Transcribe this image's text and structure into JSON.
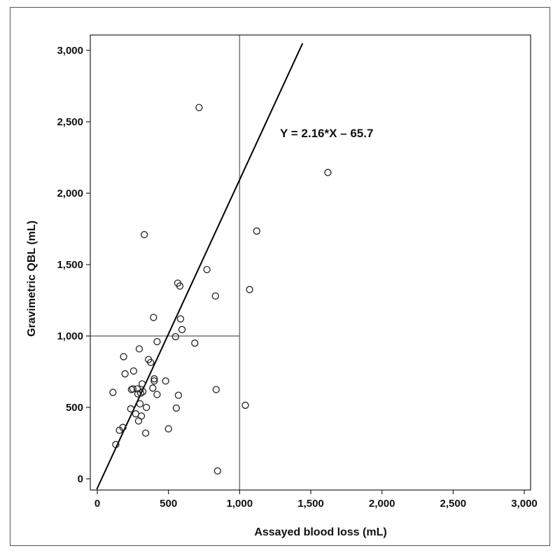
{
  "chart_data": {
    "type": "scatter",
    "title": "",
    "xlabel": "Assayed blood loss (mL)",
    "ylabel": "Gravimetric QBL (mL)",
    "xlim": [
      0,
      3000
    ],
    "ylim": [
      0,
      3000
    ],
    "x_ticks": [
      {
        "value": 0,
        "label": "0"
      },
      {
        "value": 500,
        "label": "500"
      },
      {
        "value": 1000,
        "label": "1,000"
      },
      {
        "value": 1500,
        "label": "1,500"
      },
      {
        "value": 2000,
        "label": "2,000"
      },
      {
        "value": 2500,
        "label": "2,500"
      },
      {
        "value": 3000,
        "label": "3,000"
      }
    ],
    "y_ticks": [
      {
        "value": 0,
        "label": "0"
      },
      {
        "value": 500,
        "label": "500"
      },
      {
        "value": 1000,
        "label": "1,000"
      },
      {
        "value": 1500,
        "label": "1,500"
      },
      {
        "value": 2000,
        "label": "2,000"
      },
      {
        "value": 2500,
        "label": "2,500"
      },
      {
        "value": 3000,
        "label": "3,000"
      }
    ],
    "reference_lines": {
      "x": 1000,
      "y": 1000
    },
    "regression": {
      "slope": 2.16,
      "intercept": -65.7,
      "label": "Y = 2.16*X – 65.7"
    },
    "points": [
      {
        "x": 110,
        "y": 605
      },
      {
        "x": 130,
        "y": 240
      },
      {
        "x": 155,
        "y": 340
      },
      {
        "x": 180,
        "y": 360
      },
      {
        "x": 185,
        "y": 855
      },
      {
        "x": 195,
        "y": 735
      },
      {
        "x": 235,
        "y": 490
      },
      {
        "x": 240,
        "y": 625
      },
      {
        "x": 250,
        "y": 630
      },
      {
        "x": 255,
        "y": 755
      },
      {
        "x": 270,
        "y": 455
      },
      {
        "x": 280,
        "y": 630
      },
      {
        "x": 285,
        "y": 595
      },
      {
        "x": 290,
        "y": 405
      },
      {
        "x": 295,
        "y": 910
      },
      {
        "x": 300,
        "y": 525
      },
      {
        "x": 305,
        "y": 600
      },
      {
        "x": 310,
        "y": 440
      },
      {
        "x": 315,
        "y": 665
      },
      {
        "x": 320,
        "y": 610
      },
      {
        "x": 330,
        "y": 1710
      },
      {
        "x": 340,
        "y": 320
      },
      {
        "x": 345,
        "y": 500
      },
      {
        "x": 360,
        "y": 835
      },
      {
        "x": 375,
        "y": 815
      },
      {
        "x": 390,
        "y": 635
      },
      {
        "x": 395,
        "y": 1130
      },
      {
        "x": 400,
        "y": 700
      },
      {
        "x": 400,
        "y": 685
      },
      {
        "x": 420,
        "y": 590
      },
      {
        "x": 420,
        "y": 960
      },
      {
        "x": 480,
        "y": 685
      },
      {
        "x": 500,
        "y": 350
      },
      {
        "x": 550,
        "y": 995
      },
      {
        "x": 555,
        "y": 495
      },
      {
        "x": 565,
        "y": 1370
      },
      {
        "x": 570,
        "y": 585
      },
      {
        "x": 580,
        "y": 1350
      },
      {
        "x": 585,
        "y": 1120
      },
      {
        "x": 595,
        "y": 1045
      },
      {
        "x": 685,
        "y": 950
      },
      {
        "x": 715,
        "y": 2600
      },
      {
        "x": 770,
        "y": 1465
      },
      {
        "x": 830,
        "y": 1280
      },
      {
        "x": 835,
        "y": 625
      },
      {
        "x": 845,
        "y": 55
      },
      {
        "x": 1040,
        "y": 515
      },
      {
        "x": 1070,
        "y": 1325
      },
      {
        "x": 1120,
        "y": 1735
      },
      {
        "x": 1620,
        "y": 2145
      }
    ]
  }
}
